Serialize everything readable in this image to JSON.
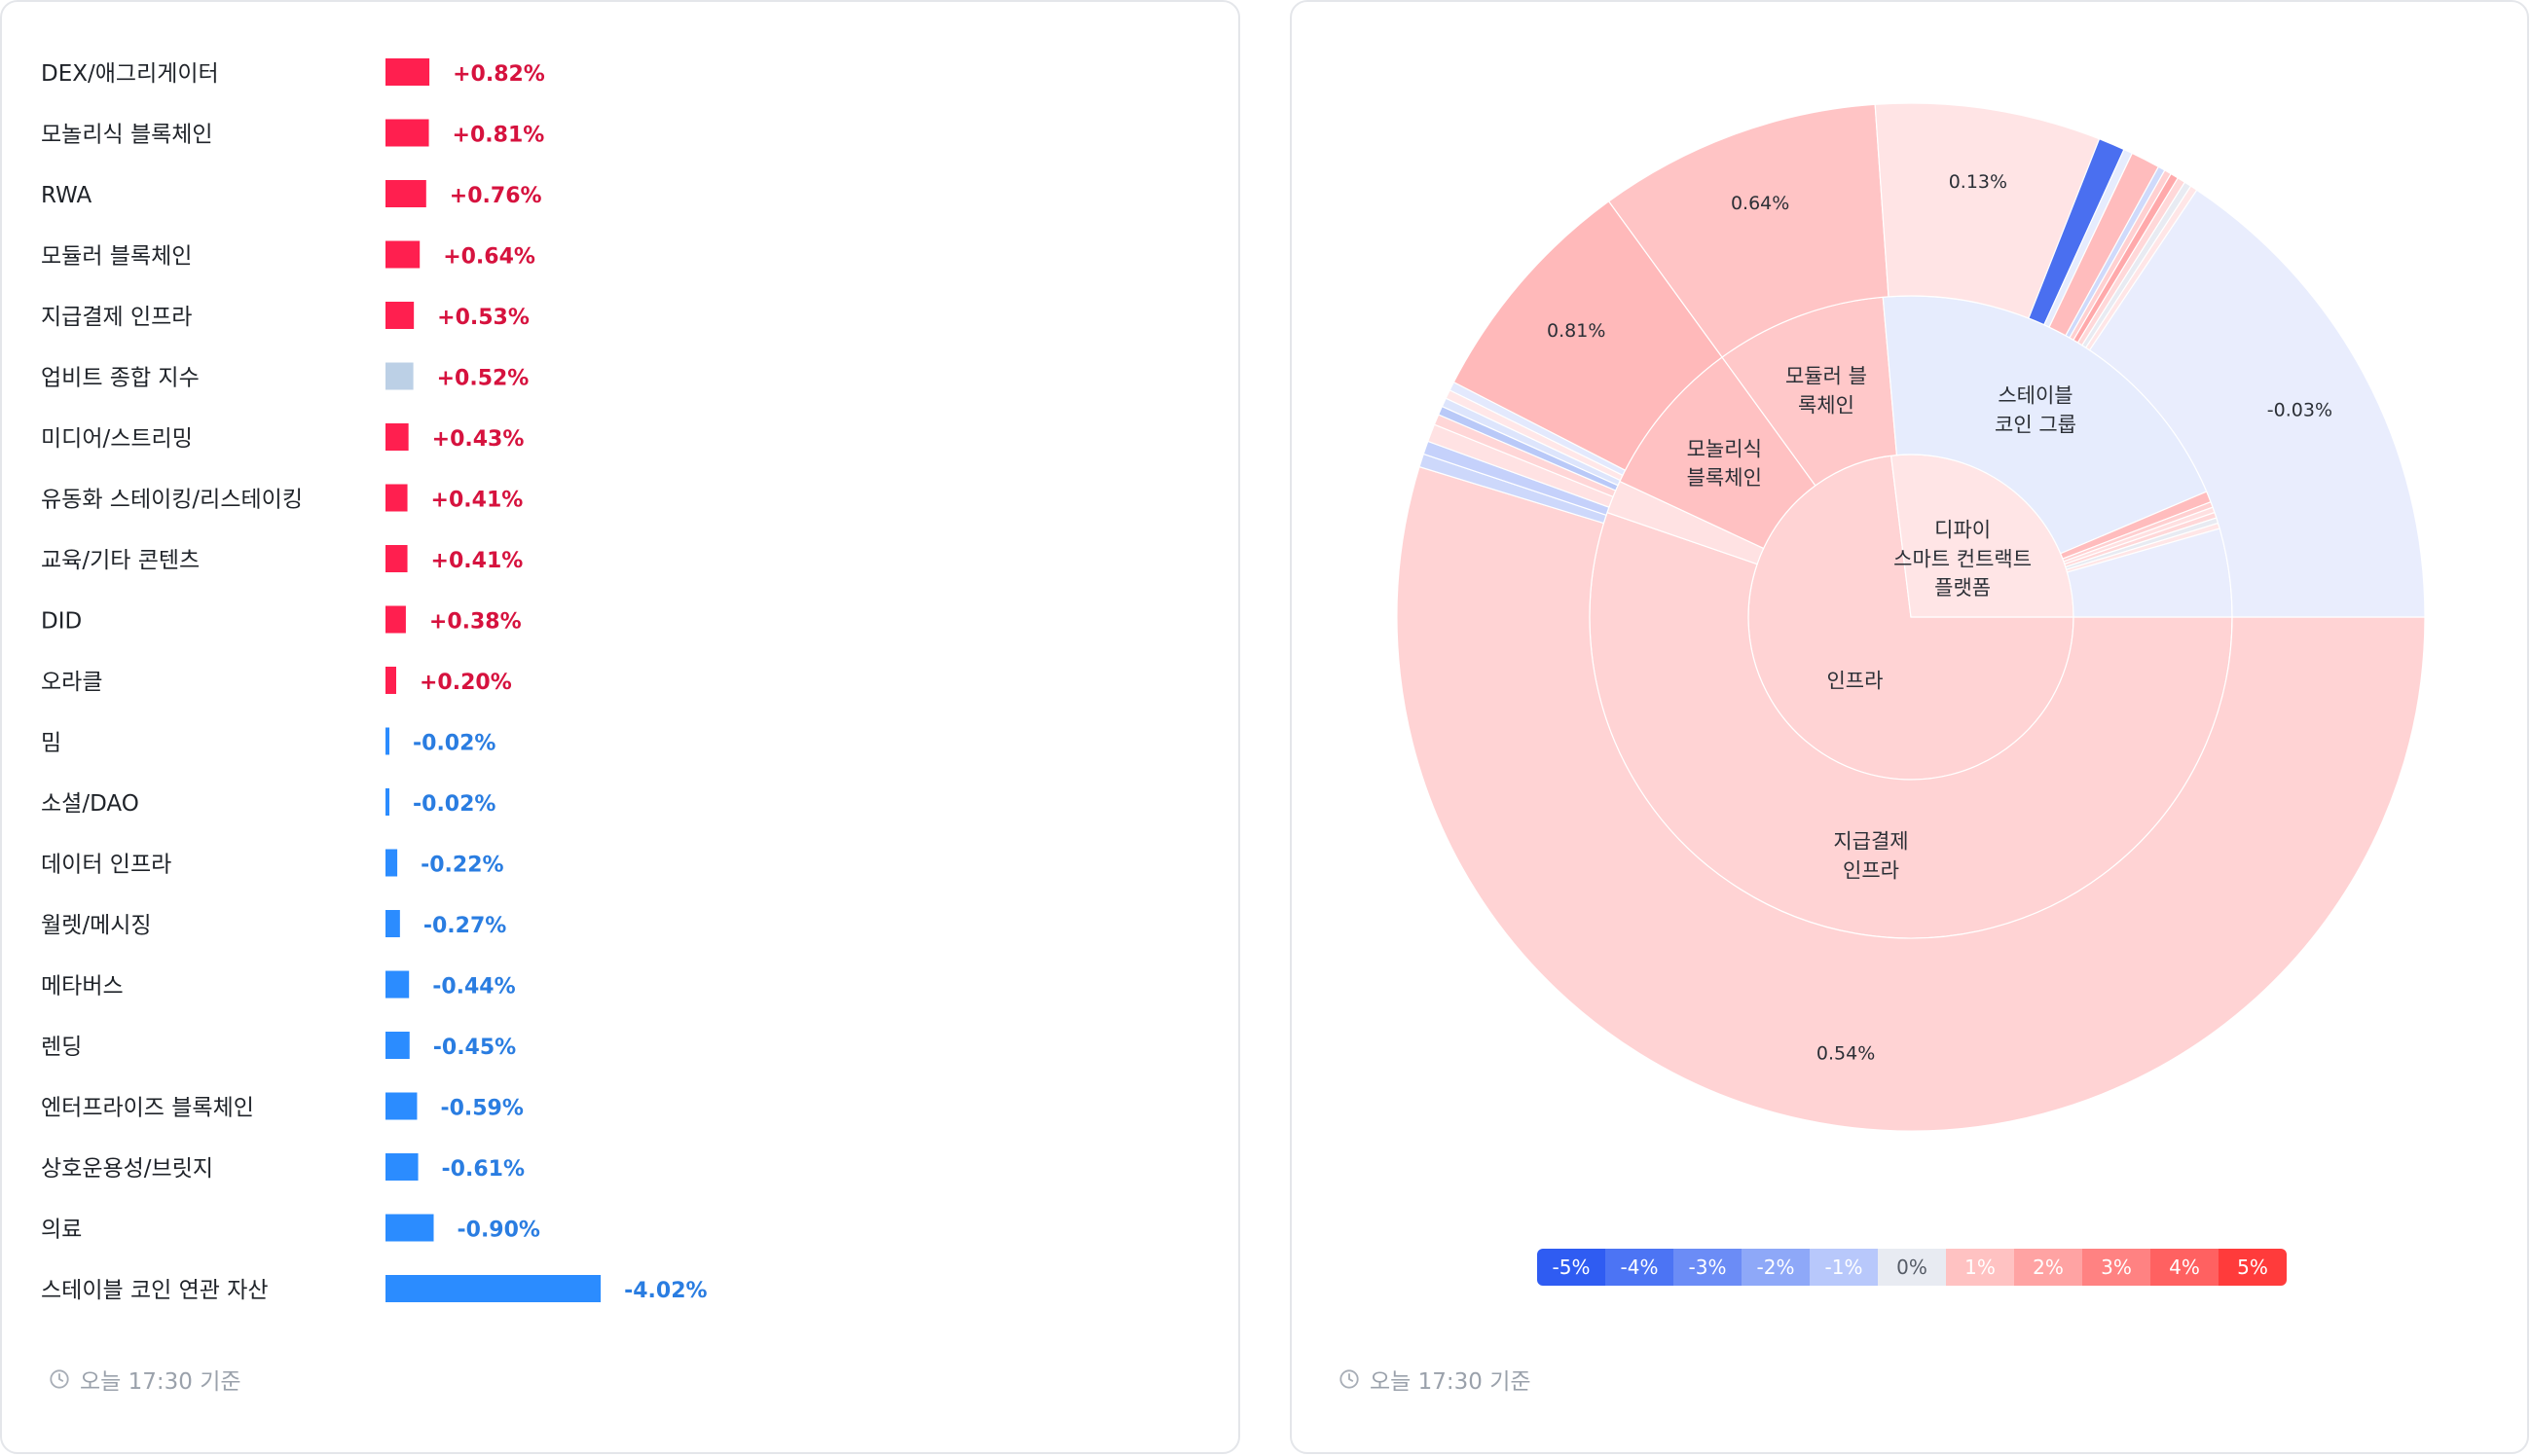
{
  "left_panel": {
    "timestamp": "오늘 17:30 기준"
  },
  "right_panel": {
    "timestamp": "오늘 17:30 기준"
  },
  "colors": {
    "positive_bar": "#ff1f4f",
    "positive_text": "#d6123e",
    "negative_bar": "#2b8cff",
    "negative_text": "#2a7de1",
    "index_bar": "#bcd0e6",
    "timestamp": "#9aa1ab"
  },
  "legend": [
    {
      "label": "-5%",
      "color": "#2f5cf2",
      "text": "#ffffff"
    },
    {
      "label": "-4%",
      "color": "#4c74f4",
      "text": "#ffffff"
    },
    {
      "label": "-3%",
      "color": "#6b8cf6",
      "text": "#ffffff"
    },
    {
      "label": "-2%",
      "color": "#8ea8f8",
      "text": "#ffffff"
    },
    {
      "label": "-1%",
      "color": "#b8c8fb",
      "text": "#ffffff"
    },
    {
      "label": "0%",
      "color": "#e8ebf2",
      "text": "#555b66"
    },
    {
      "label": "1%",
      "color": "#ffc2c2",
      "text": "#ffffff"
    },
    {
      "label": "2%",
      "color": "#ffa3a3",
      "text": "#ffffff"
    },
    {
      "label": "3%",
      "color": "#ff8282",
      "text": "#ffffff"
    },
    {
      "label": "4%",
      "color": "#ff6161",
      "text": "#ffffff"
    },
    {
      "label": "5%",
      "color": "#ff3b3b",
      "text": "#ffffff"
    }
  ],
  "chart_data": [
    {
      "type": "bar",
      "orientation": "horizontal",
      "categories": [
        "DEX/애그리게이터",
        "모놀리식 블록체인",
        "RWA",
        "모듈러 블록체인",
        "지급결제 인프라",
        "업비트 종합 지수",
        "미디어/스트리밍",
        "유동화 스테이킹/리스테이킹",
        "교육/기타 콘텐츠",
        "DID",
        "오라클",
        "밈",
        "소셜/DAO",
        "데이터 인프라",
        "월렛/메시징",
        "메타버스",
        "렌딩",
        "엔터프라이즈 블록체인",
        "상호운용성/브릿지",
        "의료",
        "스테이블 코인 연관 자산"
      ],
      "values": [
        0.82,
        0.81,
        0.76,
        0.64,
        0.53,
        0.52,
        0.43,
        0.41,
        0.41,
        0.38,
        0.2,
        -0.02,
        -0.02,
        -0.22,
        -0.27,
        -0.44,
        -0.45,
        -0.59,
        -0.61,
        -0.9,
        -4.02
      ],
      "value_labels": [
        "+0.82%",
        "+0.81%",
        "+0.76%",
        "+0.64%",
        "+0.53%",
        "+0.52%",
        "+0.43%",
        "+0.41%",
        "+0.41%",
        "+0.38%",
        "+0.20%",
        "-0.02%",
        "-0.02%",
        "-0.22%",
        "-0.27%",
        "-0.44%",
        "-0.45%",
        "-0.59%",
        "-0.61%",
        "-0.90%",
        "-4.02%"
      ],
      "highlight_index": 5
    },
    {
      "type": "sunburst",
      "rings": [
        {
          "level": 1,
          "segments": [
            {
              "label": "인프라",
              "start_angle": 90,
              "end_angle": 353,
              "color": "#ffd3d4"
            },
            {
              "label": "디파이\n스마트 컨트랙트\n플랫폼",
              "start_angle": 353,
              "end_angle": 450,
              "color": "#ffe5e6"
            }
          ]
        },
        {
          "level": 2,
          "segments": [
            {
              "label": "지급결제\n인프라",
              "start_angle": 90,
              "end_angle": 289,
              "color": "#ffd3d4"
            },
            {
              "label": "",
              "start_angle": 289,
              "end_angle": 295,
              "color": "#ffe2e3"
            },
            {
              "label": "모놀리식\n블록체인",
              "start_angle": 295,
              "end_angle": 324,
              "color": "#ffc1c2"
            },
            {
              "label": "모듈러 블\n록체인",
              "start_angle": 324,
              "end_angle": 355,
              "color": "#ffc8c9"
            },
            {
              "label": "스테이블\n코인 그룹",
              "start_angle": 355,
              "end_angle": 427,
              "color": "#e6ecfd"
            },
            {
              "label": "",
              "start_angle": 427,
              "end_angle": 429,
              "color": "#ffbcbd"
            },
            {
              "label": "",
              "start_angle": 429,
              "end_angle": 430,
              "color": "#ffd0d1"
            },
            {
              "label": "",
              "start_angle": 430,
              "end_angle": 431,
              "color": "#ffe0e1"
            },
            {
              "label": "",
              "start_angle": 431,
              "end_angle": 432,
              "color": "#ffd8d9"
            },
            {
              "label": "",
              "start_angle": 432,
              "end_angle": 433,
              "color": "#e8ebf2"
            },
            {
              "label": "",
              "start_angle": 433,
              "end_angle": 434,
              "color": "#ffe6e7"
            },
            {
              "label": "",
              "start_angle": 434,
              "end_angle": 450,
              "color": "#e9edfd"
            }
          ]
        },
        {
          "level": 3,
          "segments": [
            {
              "label": "0.54%",
              "start_angle": 90,
              "end_angle": 287,
              "color": "#ffd3d4"
            },
            {
              "label": "",
              "start_angle": 287,
              "end_angle": 288.5,
              "color": "#cdd8fb"
            },
            {
              "label": "",
              "start_angle": 288.5,
              "end_angle": 290,
              "color": "#c5d1fb"
            },
            {
              "label": "",
              "start_angle": 290,
              "end_angle": 292,
              "color": "#ffe2e3"
            },
            {
              "label": "",
              "start_angle": 292,
              "end_angle": 293.2,
              "color": "#ffd6d7"
            },
            {
              "label": "",
              "start_angle": 293.2,
              "end_angle": 294.2,
              "color": "#b9c9f8"
            },
            {
              "label": "",
              "start_angle": 294.2,
              "end_angle": 295.2,
              "color": "#dde5fc"
            },
            {
              "label": "",
              "start_angle": 295.2,
              "end_angle": 296.2,
              "color": "#ffe7e8"
            },
            {
              "label": "",
              "start_angle": 296.2,
              "end_angle": 297.2,
              "color": "#e3e9fd"
            },
            {
              "label": "0.81%",
              "start_angle": 297.2,
              "end_angle": 324,
              "color": "#ffb9ba"
            },
            {
              "label": "0.64%",
              "start_angle": 324,
              "end_angle": 356,
              "color": "#ffc4c5"
            },
            {
              "label": "0.13%",
              "start_angle": 356,
              "end_angle": 381.5,
              "color": "#ffe4e5"
            },
            {
              "label": "",
              "start_angle": 381.5,
              "end_angle": 384.5,
              "color": "#4a6ff0"
            },
            {
              "label": "",
              "start_angle": 384.5,
              "end_angle": 385.5,
              "color": "#e6ecfd"
            },
            {
              "label": "",
              "start_angle": 385.5,
              "end_angle": 388.8,
              "color": "#ffbcbd"
            },
            {
              "label": "",
              "start_angle": 388.8,
              "end_angle": 389.6,
              "color": "#cfdafb"
            },
            {
              "label": "",
              "start_angle": 389.6,
              "end_angle": 390.4,
              "color": "#ffd0d1"
            },
            {
              "label": "",
              "start_angle": 390.4,
              "end_angle": 391.3,
              "color": "#ffa9ab"
            },
            {
              "label": "",
              "start_angle": 391.3,
              "end_angle": 392.2,
              "color": "#ffd8d9"
            },
            {
              "label": "",
              "start_angle": 392.2,
              "end_angle": 393,
              "color": "#e8ebf2"
            },
            {
              "label": "",
              "start_angle": 393,
              "end_angle": 393.8,
              "color": "#ffe6e7"
            },
            {
              "label": "-0.03%",
              "start_angle": 393.8,
              "end_angle": 450,
              "color": "#e9edfd"
            }
          ]
        }
      ]
    }
  ]
}
